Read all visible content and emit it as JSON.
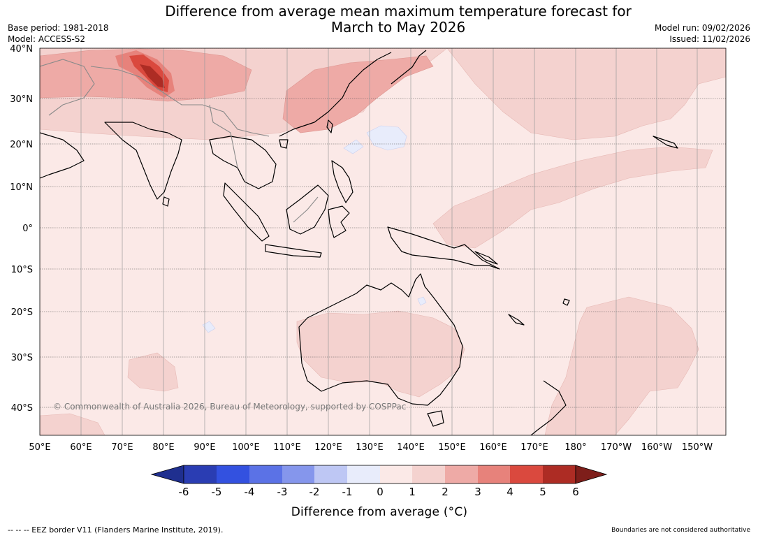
{
  "title": {
    "line1": "Difference from average mean maximum temperature forecast for",
    "line2": "March to May 2026"
  },
  "meta_left": {
    "base_period": "Base period: 1981-2018",
    "model": "Model: ACCESS-S2"
  },
  "meta_right": {
    "model_run": "Model run: 09/02/2026",
    "issued": "Issued: 11/02/2026"
  },
  "map": {
    "lat_labels": [
      "40°N",
      "30°N",
      "20°N",
      "10°N",
      "0°",
      "10°S",
      "20°S",
      "30°S",
      "40°S"
    ],
    "lon_labels": [
      "50°E",
      "60°E",
      "70°E",
      "80°E",
      "90°E",
      "100°E",
      "110°E",
      "120°E",
      "130°E",
      "140°E",
      "150°E",
      "160°E",
      "170°E",
      "180°",
      "170°W",
      "160°W",
      "150°W"
    ],
    "copyright": "© Commonwealth of Australia 2026, Bureau of Meteorology, supported by COSPPac",
    "base_color": "#fbe9e7"
  },
  "legend": {
    "ticks": [
      "-6",
      "-5",
      "-4",
      "-3",
      "-2",
      "-1",
      "0",
      "1",
      "2",
      "3",
      "4",
      "5",
      "6"
    ],
    "colors": [
      "#1f2f8f",
      "#2a3db3",
      "#3351e0",
      "#5b72e6",
      "#8596ec",
      "#bec7f4",
      "#e8ecfb",
      "#fbe9e7",
      "#f4d2cf",
      "#eeaaa6",
      "#e7827b",
      "#da493e",
      "#ad2c24",
      "#7e1e1a"
    ],
    "title": "Difference from average (°C)"
  },
  "footer": {
    "left": "--  --  -- EEZ border V11 (Flanders Marine Institute, 2019).",
    "right": "Boundaries are not considered authoritative"
  }
}
